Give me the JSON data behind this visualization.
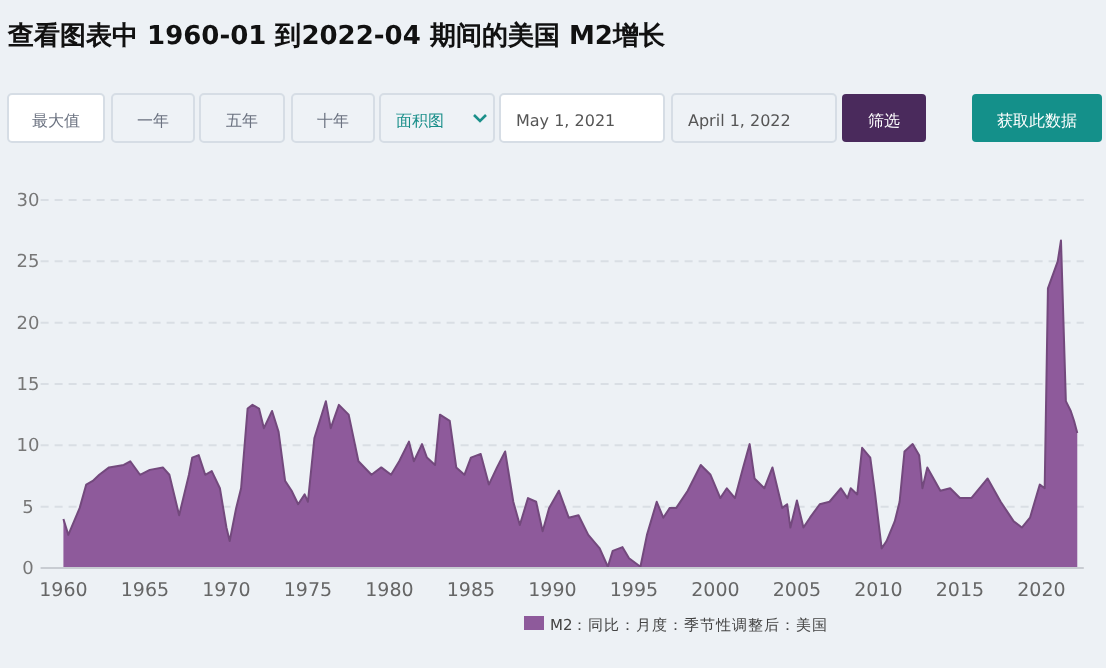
{
  "chart_data": {
    "type": "area",
    "title": "查看图表中 1960-01 到2022-04 期间的美国 M2增长",
    "annotations": [
      "最大值",
      "一年",
      "五年",
      "十年",
      "面积图",
      "May 1, 2021",
      "April 1, 2022",
      "筛选",
      "获取此数据"
    ],
    "series": [
      {
        "name": "M2：同比：月度：季节性调整后：美国",
        "color": "#8e5a9b",
        "x": [
          1960.0,
          1960.3,
          1961.0,
          1961.4,
          1961.8,
          1962.2,
          1962.8,
          1963.7,
          1964.1,
          1964.7,
          1965.3,
          1966.1,
          1966.5,
          1967.1,
          1967.7,
          1967.9,
          1968.3,
          1968.7,
          1969.1,
          1969.6,
          1970.0,
          1970.2,
          1970.6,
          1970.9,
          1971.3,
          1971.6,
          1972.0,
          1972.3,
          1972.8,
          1973.2,
          1973.6,
          1974.0,
          1974.4,
          1974.8,
          1975.0,
          1975.4,
          1976.1,
          1976.4,
          1976.9,
          1977.5,
          1978.1,
          1978.9,
          1979.5,
          1980.1,
          1980.6,
          1981.2,
          1981.5,
          1982.0,
          1982.3,
          1982.8,
          1983.1,
          1983.7,
          1984.1,
          1984.6,
          1985.0,
          1985.6,
          1986.1,
          1986.6,
          1987.1,
          1987.6,
          1988.0,
          1988.5,
          1989.0,
          1989.4,
          1989.8,
          1990.4,
          1991.0,
          1991.6,
          1992.2,
          1992.9,
          1993.4,
          1993.7,
          1994.3,
          1994.7,
          1995.4,
          1995.8,
          1996.4,
          1996.8,
          1997.2,
          1997.6,
          1998.3,
          1999.1,
          1999.7,
          2000.3,
          2000.7,
          2001.2,
          2001.7,
          2002.1,
          2002.4,
          2003.0,
          2003.5,
          2004.1,
          2004.4,
          2004.6,
          2005.0,
          2005.4,
          2005.8,
          2006.4,
          2007.0,
          2007.7,
          2008.1,
          2008.3,
          2008.7,
          2009.0,
          2009.5,
          2009.8,
          2010.2,
          2010.5,
          2011.0,
          2011.3,
          2011.6,
          2012.1,
          2012.5,
          2012.7,
          2013.0,
          2013.8,
          2014.4,
          2015.0,
          2015.7,
          2016.7,
          2017.5,
          2018.3,
          2018.8,
          2019.3,
          2019.9,
          2020.2,
          2020.4,
          2020.7,
          2021.0,
          2021.2,
          2021.5,
          2021.8,
          2022.0,
          2022.2
        ],
        "values": [
          4.0,
          2.7,
          4.9,
          6.8,
          7.1,
          7.6,
          8.2,
          8.4,
          8.7,
          7.6,
          8.0,
          8.2,
          7.6,
          4.3,
          7.6,
          9.0,
          9.2,
          7.6,
          7.9,
          6.5,
          3.3,
          2.2,
          4.9,
          6.5,
          13.0,
          13.3,
          13.0,
          11.4,
          12.8,
          11.1,
          7.1,
          6.3,
          5.2,
          6.0,
          5.4,
          10.6,
          13.6,
          11.4,
          13.3,
          12.5,
          8.7,
          7.6,
          8.2,
          7.6,
          8.7,
          10.3,
          8.7,
          10.1,
          9.0,
          8.4,
          12.5,
          12.0,
          8.2,
          7.6,
          9.0,
          9.3,
          6.8,
          8.2,
          9.5,
          5.4,
          3.5,
          5.7,
          5.4,
          3.0,
          4.9,
          6.3,
          4.1,
          4.3,
          2.7,
          1.6,
          0.1,
          1.4,
          1.7,
          0.8,
          0.1,
          2.7,
          5.4,
          4.1,
          4.9,
          4.9,
          6.3,
          8.4,
          7.6,
          5.7,
          6.5,
          5.7,
          8.2,
          10.1,
          7.3,
          6.5,
          8.2,
          4.9,
          5.2,
          3.3,
          5.5,
          3.3,
          4.1,
          5.2,
          5.4,
          6.5,
          5.7,
          6.5,
          6.0,
          9.8,
          9.0,
          6.0,
          1.6,
          2.2,
          3.8,
          5.4,
          9.5,
          10.1,
          9.2,
          6.5,
          8.2,
          6.3,
          6.5,
          5.7,
          5.7,
          7.3,
          5.4,
          3.8,
          3.3,
          4.1,
          6.8,
          6.5,
          22.8,
          23.9,
          25.0,
          26.7,
          13.6,
          12.8,
          12.0,
          11.0
        ]
      }
    ],
    "xlim": [
      1958.6,
      2022.6
    ],
    "xticks": [
      1960,
      1965,
      1970,
      1975,
      1980,
      1985,
      1990,
      1995,
      2000,
      2005,
      2010,
      2015,
      2020
    ],
    "ylim": [
      0,
      30
    ],
    "yticks": [
      0,
      5,
      10,
      15,
      20,
      25,
      30
    ],
    "grid": "y",
    "legend": "bottom"
  }
}
